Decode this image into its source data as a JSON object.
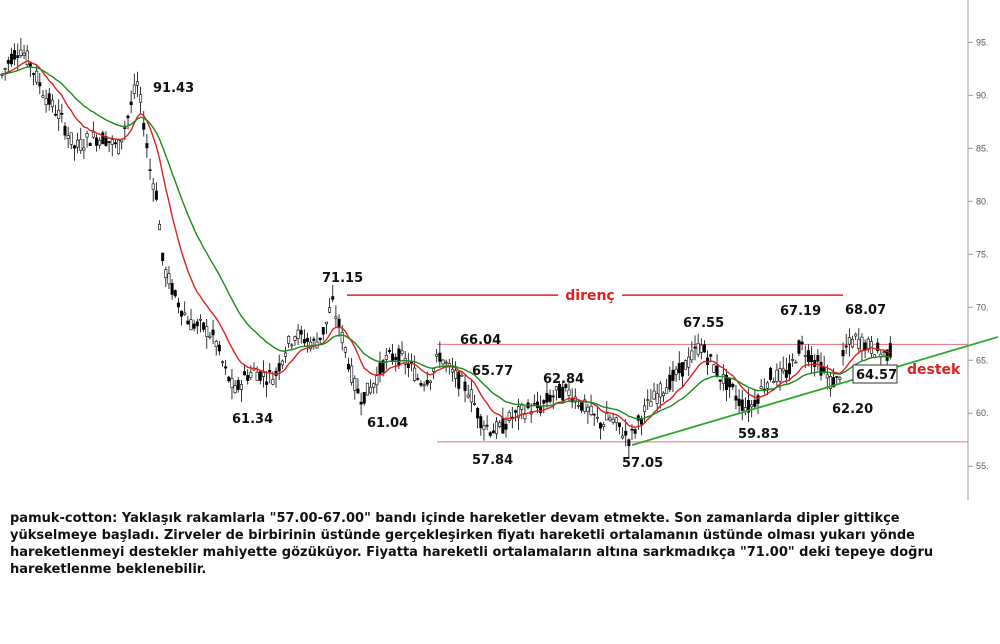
{
  "chart_data": {
    "type": "candlestick",
    "ylim": [
      52,
      99
    ],
    "yticks": [
      "55.",
      "60.",
      "65.",
      "70.",
      "75.",
      "80.",
      "85.",
      "90.",
      "95."
    ],
    "grid": false,
    "series": [
      {
        "name": "price",
        "color": "#000000"
      },
      {
        "name": "fast moving average",
        "color": "#e02020"
      },
      {
        "name": "slow moving average",
        "color": "#1a8a1a"
      }
    ],
    "peaks": [
      {
        "label": "91.43",
        "value": 91.43
      },
      {
        "label": "71.15",
        "value": 71.15
      },
      {
        "label": "61.34",
        "value": 61.34
      },
      {
        "label": "61.04",
        "value": 61.04
      },
      {
        "label": "66.04",
        "value": 66.04
      },
      {
        "label": "65.77",
        "value": 65.77
      },
      {
        "label": "57.84",
        "value": 57.84
      },
      {
        "label": "62.84",
        "value": 62.84
      },
      {
        "label": "57.05",
        "value": 57.05
      },
      {
        "label": "67.55",
        "value": 67.55
      },
      {
        "label": "59.83",
        "value": 59.83
      },
      {
        "label": "67.19",
        "value": 67.19
      },
      {
        "label": "68.07",
        "value": 68.07
      },
      {
        "label": "62.20",
        "value": 62.2
      }
    ],
    "last_price": "64.57",
    "resistance_label": "direnç",
    "support_label": "destek",
    "resistance_level": 71.15,
    "band_upper": 66.5,
    "band_lower": 57.3,
    "anchors": [
      [
        0,
        91.5
      ],
      [
        10,
        93.5
      ],
      [
        20,
        94.5
      ],
      [
        30,
        93
      ],
      [
        45,
        90
      ],
      [
        60,
        88
      ],
      [
        75,
        85
      ],
      [
        90,
        86
      ],
      [
        105,
        86
      ],
      [
        118,
        85
      ],
      [
        128,
        88
      ],
      [
        137,
        91.2
      ],
      [
        143,
        88
      ],
      [
        150,
        83
      ],
      [
        157,
        80.5
      ],
      [
        163,
        74
      ],
      [
        175,
        71
      ],
      [
        190,
        68.5
      ],
      [
        205,
        68
      ],
      [
        215,
        67
      ],
      [
        225,
        64
      ],
      [
        235,
        62
      ],
      [
        245,
        63.5
      ],
      [
        255,
        64
      ],
      [
        265,
        63.5
      ],
      [
        275,
        63.5
      ],
      [
        285,
        66
      ],
      [
        295,
        67.5
      ],
      [
        305,
        67
      ],
      [
        315,
        66.5
      ],
      [
        325,
        68
      ],
      [
        332,
        70.5
      ],
      [
        340,
        68
      ],
      [
        348,
        65
      ],
      [
        355,
        62.5
      ],
      [
        362,
        61.5
      ],
      [
        372,
        62.5
      ],
      [
        385,
        65
      ],
      [
        397,
        65.5
      ],
      [
        410,
        64.5
      ],
      [
        420,
        63
      ],
      [
        430,
        63.5
      ],
      [
        440,
        65.5
      ],
      [
        450,
        64
      ],
      [
        460,
        63
      ],
      [
        470,
        62
      ],
      [
        480,
        59.5
      ],
      [
        490,
        58.5
      ],
      [
        500,
        58.5
      ],
      [
        510,
        59.5
      ],
      [
        520,
        60
      ],
      [
        530,
        60.5
      ],
      [
        540,
        60.5
      ],
      [
        550,
        61.5
      ],
      [
        560,
        62
      ],
      [
        570,
        62
      ],
      [
        580,
        61
      ],
      [
        590,
        60
      ],
      [
        600,
        59
      ],
      [
        610,
        59.5
      ],
      [
        620,
        58.5
      ],
      [
        630,
        57.5
      ],
      [
        640,
        59.5
      ],
      [
        650,
        61
      ],
      [
        660,
        62
      ],
      [
        670,
        63
      ],
      [
        680,
        64
      ],
      [
        690,
        65
      ],
      [
        700,
        66.5
      ],
      [
        710,
        65
      ],
      [
        720,
        63.5
      ],
      [
        730,
        62.5
      ],
      [
        740,
        61
      ],
      [
        750,
        60.5
      ],
      [
        760,
        62
      ],
      [
        770,
        63.5
      ],
      [
        780,
        63.5
      ],
      [
        790,
        64
      ],
      [
        800,
        66.5
      ],
      [
        810,
        65.5
      ],
      [
        820,
        64.5
      ],
      [
        830,
        63
      ],
      [
        838,
        63
      ],
      [
        845,
        66
      ],
      [
        855,
        67
      ],
      [
        865,
        66.5
      ],
      [
        875,
        66
      ],
      [
        885,
        65.5
      ],
      [
        893,
        66
      ]
    ]
  },
  "comment": "pamuk-cotton: Yaklaşık rakamlarla \"57.00-67.00\" bandı içinde hareketler devam etmekte. Son zamanlarda dipler gittikçe yükselmeye başladı. Zirveler de birbirinin üstünde gerçekleşirken fiyatı hareketli ortalamanın üstünde olması yukarı yönde hareketlenmeyi destekler mahiyette gözüküyor. Fiyatta hareketli ortalamaların altına sarkmadıkça \"71.00\" deki tepeye doğru hareketlenme beklenebilir."
}
